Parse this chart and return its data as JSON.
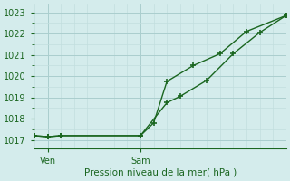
{
  "xlabel": "Pression niveau de la mer( hPa )",
  "background_color": "#d4ecec",
  "grid_major_color": "#aacece",
  "grid_minor_color": "#c2dede",
  "line_color": "#1a6620",
  "ylim": [
    1016.6,
    1023.4
  ],
  "xlim": [
    0,
    9.5
  ],
  "yticks": [
    1017,
    1018,
    1019,
    1020,
    1021,
    1022,
    1023
  ],
  "xtick_positions": [
    0.5,
    4.0
  ],
  "xtick_labels": [
    "Ven",
    "Sam"
  ],
  "line1_x": [
    0.0,
    0.5,
    1.0,
    4.0,
    5.0,
    5.5,
    6.5,
    7.5,
    8.5,
    9.5
  ],
  "line1_y": [
    1017.2,
    1017.15,
    1017.2,
    1017.2,
    1018.75,
    1019.05,
    1019.8,
    1021.05,
    1022.05,
    1022.85
  ],
  "line2_x": [
    0.0,
    0.5,
    1.0,
    4.0,
    4.5,
    5.0,
    6.0,
    7.0,
    8.0,
    9.5
  ],
  "line2_y": [
    1017.2,
    1017.15,
    1017.2,
    1017.2,
    1017.8,
    1019.75,
    1020.5,
    1021.05,
    1022.1,
    1022.85
  ],
  "marker_size": 5,
  "linewidth": 1.0
}
